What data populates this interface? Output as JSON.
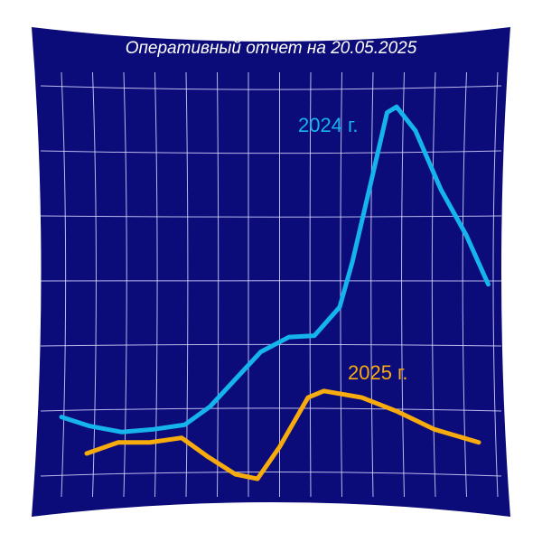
{
  "chart_data": {
    "type": "line",
    "title": "Оперативный отчет на 20.05.2025",
    "series": [
      {
        "name": "2024 г.",
        "color": "#16b4ec",
        "x": [
          0,
          0.9,
          1.9,
          2.9,
          3.9,
          4.7,
          5.5,
          6.3,
          7.2,
          8,
          8.8,
          9.2,
          9.8,
          10.3,
          10.6,
          11.2,
          12,
          12.8,
          13.5
        ],
        "values": [
          0.88,
          0.74,
          0.65,
          0.69,
          0.76,
          1.04,
          1.46,
          1.88,
          2.11,
          2.13,
          2.57,
          3.26,
          4.51,
          5.56,
          5.65,
          5.28,
          4.38,
          3.68,
          2.92
        ]
      },
      {
        "name": "2025 г.",
        "color": "#f7ab0c",
        "x": [
          0.8,
          1.8,
          2.8,
          3.8,
          4.6,
          5.5,
          6.2,
          6.9,
          7.8,
          8.3,
          9.5,
          10.6,
          11.8,
          13.2
        ],
        "values": [
          0.32,
          0.49,
          0.49,
          0.56,
          0.28,
          0,
          -0.07,
          0.42,
          1.18,
          1.28,
          1.18,
          0.97,
          0.69,
          0.49
        ]
      }
    ]
  }
}
